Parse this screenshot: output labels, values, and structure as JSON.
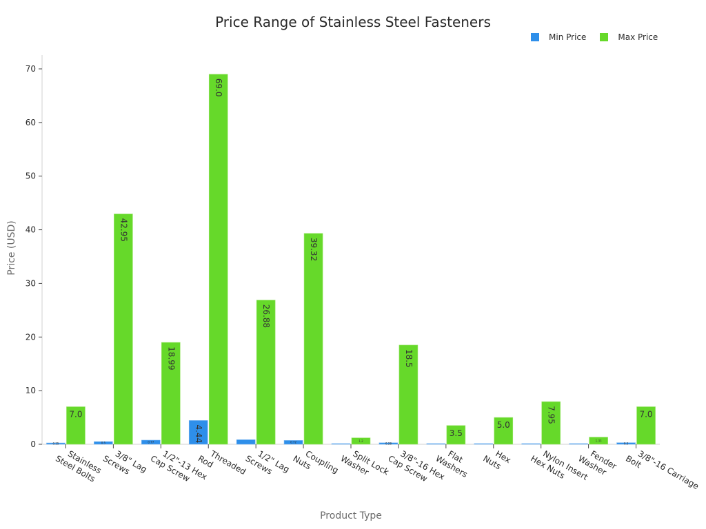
{
  "chart_data": {
    "type": "bar",
    "title": "Price Range of Stainless Steel Fasteners",
    "xlabel": "Product Type",
    "ylabel": "Price (USD)",
    "ylim": [
      0,
      70
    ],
    "yticks": [
      0,
      10,
      20,
      30,
      40,
      50,
      60,
      70
    ],
    "grid": false,
    "legend_position": "top-right",
    "categories": [
      "Stainless Steel Bolts",
      "3/8\" Lag Screws",
      "1/2\"-13 Hex Cap Screw",
      "Threaded Rod",
      "1/2\" Lag Screws",
      "Coupling Nuts",
      "Split Lock Washer",
      "3/8\"-16 Hex Cap Screw",
      "Flat Washers",
      "Hex Nuts",
      "Nylon Insert Hex Nuts",
      "Fender Washer",
      "3/8\"-16 Carriage Bolt"
    ],
    "category_lines": [
      [
        "Stainless",
        "Steel Bolts"
      ],
      [
        "3/8\" Lag",
        "Screws"
      ],
      [
        "1/2\"-13 Hex",
        "Cap Screw"
      ],
      [
        "Threaded",
        "Rod"
      ],
      [
        "1/2\" Lag",
        "Screws"
      ],
      [
        "Coupling",
        "Nuts"
      ],
      [
        "Split Lock",
        "Washer"
      ],
      [
        "3/8\"-16 Hex",
        "Cap Screw"
      ],
      [
        "Flat",
        "Washers"
      ],
      [
        "Hex",
        "Nuts"
      ],
      [
        "Nylon Insert",
        "Hex Nuts"
      ],
      [
        "Fender",
        "Washer"
      ],
      [
        "3/8\"-16 Carriage",
        "Bolt"
      ]
    ],
    "series": [
      {
        "name": "Min Price",
        "color": "#2e8fea",
        "values": [
          0.25,
          0.5,
          0.77,
          4.44,
          0.85,
          0.72,
          0.05,
          0.28,
          0.1,
          0.05,
          0.12,
          0.05,
          0.3
        ],
        "labels": [
          "0.25",
          "0.5",
          "0.77",
          "4.44",
          "",
          "0.72",
          "",
          "0.28",
          "",
          "",
          "",
          "",
          "0.3"
        ]
      },
      {
        "name": "Max Price",
        "color": "#66d92a",
        "values": [
          7.0,
          42.95,
          18.99,
          69.0,
          26.88,
          39.32,
          1.2,
          18.5,
          3.5,
          5.0,
          7.95,
          1.33,
          7.0
        ],
        "labels": [
          "7.0",
          "42.95",
          "18.99",
          "69.0",
          "26.88",
          "39.32",
          "1.2",
          "18.5",
          "3.5",
          "5.0",
          "7.95",
          "1.33",
          "7.0"
        ]
      }
    ]
  },
  "legend": {
    "items": [
      {
        "label": "Min Price",
        "color": "#2e8fea"
      },
      {
        "label": "Max Price",
        "color": "#66d92a"
      }
    ]
  }
}
